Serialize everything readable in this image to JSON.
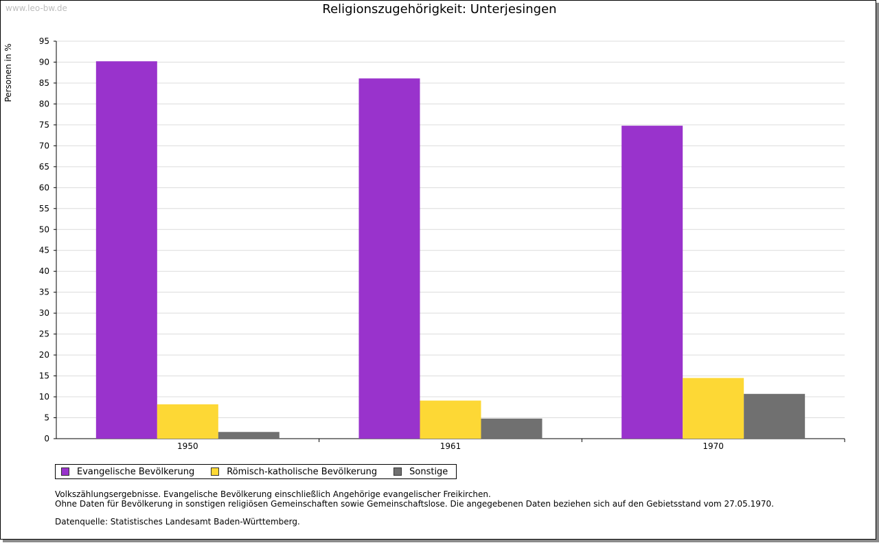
{
  "watermark": "www.leo-bw.de",
  "chart_data": {
    "type": "bar",
    "title": "Religionszugehörigkeit: Unterjesingen",
    "xlabel": "",
    "ylabel": "Personen in %",
    "ylim": [
      0,
      95
    ],
    "yticks": [
      0,
      5,
      10,
      15,
      20,
      25,
      30,
      35,
      40,
      45,
      50,
      55,
      60,
      65,
      70,
      75,
      80,
      85,
      90,
      95
    ],
    "grid": true,
    "legend_position": "bottom-left",
    "categories": [
      "1950",
      "1961",
      "1970"
    ],
    "series": [
      {
        "name": "Evangelische Bevölkerung",
        "color": "#9933cc",
        "values": [
          90.2,
          86.1,
          74.8
        ]
      },
      {
        "name": "Römisch-katholische Bevölkerung",
        "color": "#fdd835",
        "values": [
          8.2,
          9.1,
          14.5
        ]
      },
      {
        "name": "Sonstige",
        "color": "#707070",
        "values": [
          1.6,
          4.8,
          10.7
        ]
      }
    ]
  },
  "notes": {
    "line1": "Volkszählungsergebnisse. Evangelische Bevölkerung einschließlich Angehörige evangelischer Freikirchen.",
    "line2": "Ohne Daten für Bevölkerung in sonstigen religiösen Gemeinschaften sowie Gemeinschaftslose. Die angegebenen Daten beziehen sich auf den Gebietsstand vom 27.05.1970.",
    "source": "Datenquelle: Statistisches Landesamt Baden-Württemberg."
  }
}
